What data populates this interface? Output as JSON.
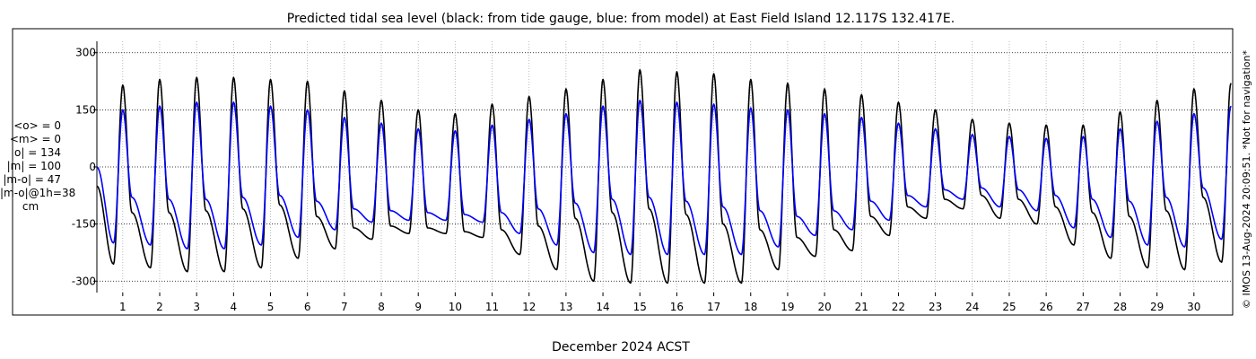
{
  "chart_data": {
    "type": "line",
    "title": "Predicted tidal sea level (black: from tide gauge, blue: from model) at East Field Island 12.117S 132.417E.",
    "xlabel": "December 2024 ACST",
    "ylabel": "",
    "ylim": [
      -330,
      330
    ],
    "yticks": [
      300,
      150,
      0,
      -150,
      -300
    ],
    "yticklabels": [
      "300",
      "150",
      "0",
      "-150",
      "-300"
    ],
    "xlim": [
      0.3,
      31.0
    ],
    "xticks": [
      1,
      2,
      3,
      4,
      5,
      6,
      7,
      8,
      9,
      10,
      11,
      12,
      13,
      14,
      15,
      16,
      17,
      18,
      19,
      20,
      21,
      22,
      23,
      24,
      25,
      26,
      27,
      28,
      29,
      30
    ],
    "xticklabels": [
      "1",
      "2",
      "3",
      "4",
      "5",
      "6",
      "7",
      "8",
      "9",
      "10",
      "11",
      "12",
      "13",
      "14",
      "15",
      "16",
      "17",
      "18",
      "19",
      "20",
      "21",
      "22",
      "23",
      "24",
      "25",
      "26",
      "27",
      "28",
      "29",
      "30"
    ],
    "grid": true,
    "series": [
      {
        "name": "from tide gauge",
        "color": "#000000",
        "x_days": [
          0.3,
          0.75,
          1.0,
          1.25,
          1.75,
          2.0,
          2.25,
          2.75,
          3.0,
          3.25,
          3.75,
          4.0,
          4.25,
          4.75,
          5.0,
          5.25,
          5.75,
          6.0,
          6.25,
          6.75,
          7.0,
          7.25,
          7.75,
          8.0,
          8.25,
          8.75,
          9.0,
          9.25,
          9.75,
          10.0,
          10.25,
          10.75,
          11.0,
          11.25,
          11.75,
          12.0,
          12.25,
          12.75,
          13.0,
          13.25,
          13.75,
          14.0,
          14.25,
          14.75,
          15.0,
          15.25,
          15.75,
          16.0,
          16.25,
          16.75,
          17.0,
          17.25,
          17.75,
          18.0,
          18.25,
          18.75,
          19.0,
          19.25,
          19.75,
          20.0,
          20.25,
          20.75,
          21.0,
          21.25,
          21.75,
          22.0,
          22.25,
          22.75,
          23.0,
          23.25,
          23.75,
          24.0,
          24.25,
          24.75,
          25.0,
          25.25,
          25.75,
          26.0,
          26.25,
          26.75,
          27.0,
          27.25,
          27.75,
          28.0,
          28.25,
          28.75,
          29.0,
          29.25,
          29.75,
          30.0,
          30.25,
          30.75,
          31.0
        ],
        "values": [
          -50,
          -255,
          215,
          -120,
          -265,
          230,
          -120,
          -275,
          235,
          -115,
          -275,
          235,
          -110,
          -265,
          230,
          -100,
          -240,
          225,
          -130,
          -215,
          200,
          -160,
          -190,
          175,
          -155,
          -175,
          150,
          -160,
          -175,
          140,
          -170,
          -185,
          165,
          -165,
          -230,
          185,
          -155,
          -270,
          205,
          -135,
          -300,
          230,
          -120,
          -305,
          255,
          -110,
          -305,
          250,
          -125,
          -305,
          245,
          -150,
          -305,
          230,
          -165,
          -270,
          220,
          -185,
          -235,
          205,
          -165,
          -220,
          190,
          -130,
          -180,
          170,
          -105,
          -135,
          150,
          -85,
          -110,
          125,
          -75,
          -135,
          115,
          -85,
          -150,
          110,
          -105,
          -205,
          110,
          -120,
          -240,
          145,
          -130,
          -265,
          175,
          -115,
          -270,
          205,
          -80,
          -250,
          220
        ]
      },
      {
        "name": "from model",
        "color": "#0000ff",
        "x_days": [
          0.3,
          0.75,
          1.0,
          1.25,
          1.75,
          2.0,
          2.25,
          2.75,
          3.0,
          3.25,
          3.75,
          4.0,
          4.25,
          4.75,
          5.0,
          5.25,
          5.75,
          6.0,
          6.25,
          6.75,
          7.0,
          7.25,
          7.75,
          8.0,
          8.25,
          8.75,
          9.0,
          9.25,
          9.75,
          10.0,
          10.25,
          10.75,
          11.0,
          11.25,
          11.75,
          12.0,
          12.25,
          12.75,
          13.0,
          13.25,
          13.75,
          14.0,
          14.25,
          14.75,
          15.0,
          15.25,
          15.75,
          16.0,
          16.25,
          16.75,
          17.0,
          17.25,
          17.75,
          18.0,
          18.25,
          18.75,
          19.0,
          19.25,
          19.75,
          20.0,
          20.25,
          20.75,
          21.0,
          21.25,
          21.75,
          22.0,
          22.25,
          22.75,
          23.0,
          23.25,
          23.75,
          24.0,
          24.25,
          24.75,
          25.0,
          25.25,
          25.75,
          26.0,
          26.25,
          26.75,
          27.0,
          27.25,
          27.75,
          28.0,
          28.25,
          28.75,
          29.0,
          29.25,
          29.75,
          30.0,
          30.25,
          30.75,
          31.0
        ],
        "values": [
          0,
          -200,
          150,
          -80,
          -205,
          160,
          -85,
          -215,
          170,
          -85,
          -215,
          170,
          -80,
          -205,
          160,
          -75,
          -185,
          150,
          -90,
          -165,
          130,
          -110,
          -145,
          115,
          -115,
          -140,
          100,
          -120,
          -140,
          95,
          -125,
          -145,
          110,
          -120,
          -175,
          125,
          -110,
          -205,
          140,
          -95,
          -225,
          160,
          -85,
          -230,
          175,
          -80,
          -230,
          170,
          -90,
          -230,
          165,
          -105,
          -230,
          155,
          -115,
          -210,
          150,
          -130,
          -180,
          140,
          -115,
          -165,
          130,
          -90,
          -140,
          115,
          -75,
          -105,
          100,
          -60,
          -85,
          85,
          -55,
          -105,
          80,
          -60,
          -115,
          75,
          -75,
          -160,
          80,
          -85,
          -185,
          100,
          -90,
          -205,
          120,
          -80,
          -210,
          140,
          -55,
          -190,
          160
        ]
      }
    ]
  },
  "stats": {
    "mean_obs": "<o> = 0",
    "mean_model": "<m> = 0",
    "abs_obs": "|o| = 134",
    "abs_model": "|m| = 100",
    "abs_diff": "|m-o| = 47",
    "abs_diff_1h": "|m-o|@1h=38",
    "units": "cm"
  },
  "credit": "© IMOS 13-Aug-2024 20:09:51. *Not for navigation*"
}
